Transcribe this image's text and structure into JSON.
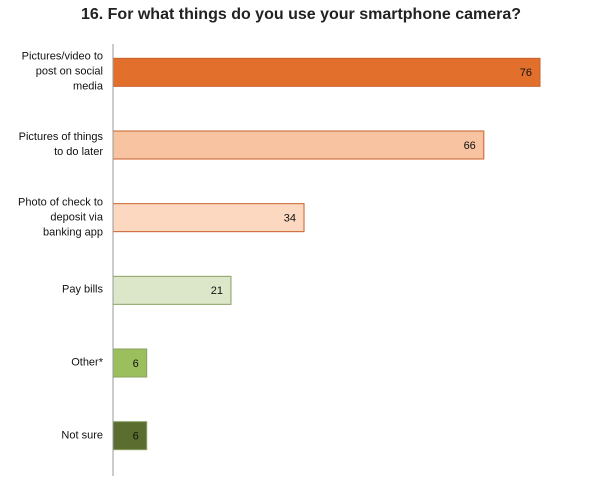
{
  "chart_data": {
    "type": "bar",
    "orientation": "horizontal",
    "title": "16. For what things do you use your smartphone camera?",
    "categories": [
      "Pictures/video to post on social media",
      "Pictures of things to do later",
      "Photo of check to deposit via banking app",
      "Pay bills",
      "Other*",
      "Not sure"
    ],
    "values": [
      76,
      66,
      34,
      21,
      6,
      6
    ],
    "colors": [
      "#e2702c",
      "#f8c3a0",
      "#fbd8bf",
      "#dbe7c8",
      "#9bbf5c",
      "#5b6e2f"
    ]
  }
}
